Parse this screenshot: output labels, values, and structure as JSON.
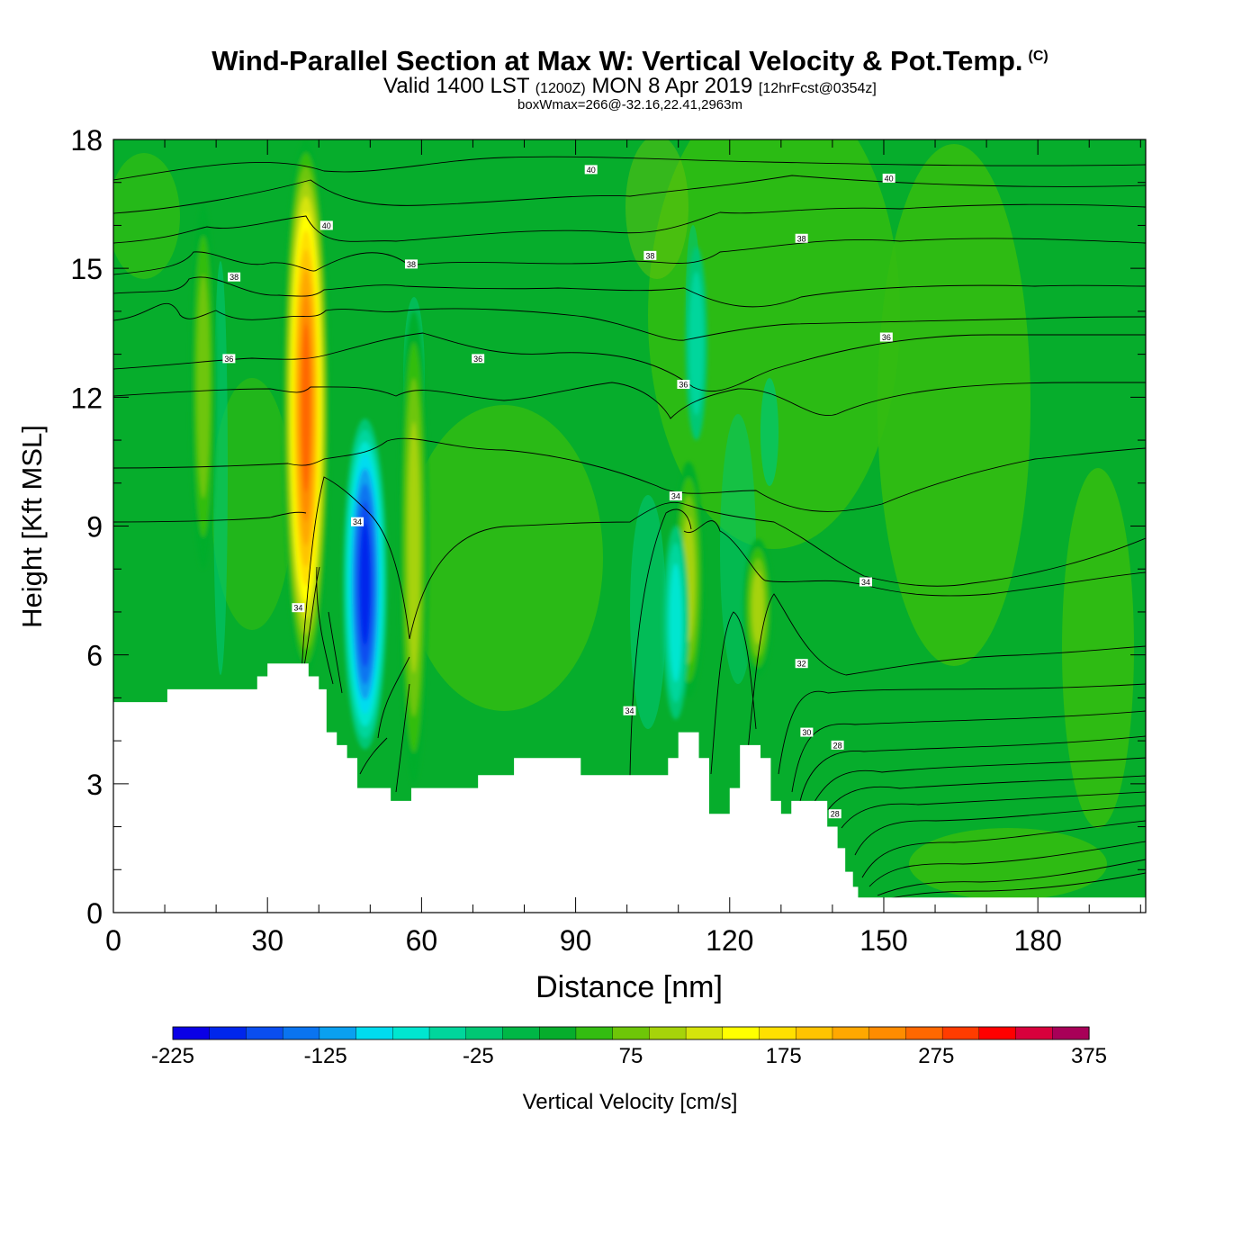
{
  "title": {
    "main": "Wind-Parallel Section at Max W: Vertical Velocity & Pot.Temp.",
    "copyright": "(C)",
    "valid_prefix": "Valid 1400 LST",
    "valid_utc": "(1200Z)",
    "valid_date": "MON 8 Apr 2019",
    "forecast": "[12hrFcst@0354z]",
    "subtitle": "boxWmax=266@-32.16,22.41,2963m"
  },
  "chart_data": {
    "type": "heatmap",
    "xlabel": "Distance [nm]",
    "ylabel": "Height [Kft MSL]",
    "xlim": [
      0,
      201
    ],
    "ylim": [
      0,
      18
    ],
    "x_ticks": [
      0,
      30,
      60,
      90,
      120,
      150,
      180
    ],
    "y_ticks": [
      0,
      3,
      6,
      9,
      12,
      15,
      18
    ],
    "background_velocity": 0,
    "updrafts_downdrafts": [
      {
        "x": 37.5,
        "y_min": 5.5,
        "y_max": 18,
        "peak": 266
      },
      {
        "x": 49,
        "y_min": 3.8,
        "y_max": 11.5,
        "peak": -200
      },
      {
        "x": 58.5,
        "y_min": 3,
        "y_max": 14,
        "peak": 100
      },
      {
        "x": 17.5,
        "y_min": 8,
        "y_max": 16.5,
        "peak": 75
      },
      {
        "x": 112,
        "y_min": 5,
        "y_max": 10.5,
        "peak": 110
      },
      {
        "x": 109.5,
        "y_min": 4.5,
        "y_max": 9,
        "peak": -75
      },
      {
        "x": 125.5,
        "y_min": 5.5,
        "y_max": 8.7,
        "peak": 100
      },
      {
        "x": 113.5,
        "y_min": 11,
        "y_max": 15.5,
        "peak": -50
      }
    ],
    "terrain_top_kft": [
      [
        0,
        4.9
      ],
      [
        10.5,
        4.9
      ],
      [
        10.5,
        5.2
      ],
      [
        28,
        5.2
      ],
      [
        28,
        5.5
      ],
      [
        30,
        5.5
      ],
      [
        30,
        5.8
      ],
      [
        38,
        5.8
      ],
      [
        38,
        5.5
      ],
      [
        40,
        5.5
      ],
      [
        40,
        5.2
      ],
      [
        41.5,
        5.2
      ],
      [
        41.5,
        4.2
      ],
      [
        43.5,
        4.2
      ],
      [
        43.5,
        3.9
      ],
      [
        45.5,
        3.9
      ],
      [
        45.5,
        3.6
      ],
      [
        47.5,
        3.6
      ],
      [
        47.5,
        2.9
      ],
      [
        54,
        2.9
      ],
      [
        54,
        2.6
      ],
      [
        58,
        2.6
      ],
      [
        58,
        2.9
      ],
      [
        71,
        2.9
      ],
      [
        71,
        3.2
      ],
      [
        78,
        3.2
      ],
      [
        78,
        3.6
      ],
      [
        91,
        3.6
      ],
      [
        91,
        3.2
      ],
      [
        108,
        3.2
      ],
      [
        108,
        3.6
      ],
      [
        110,
        3.6
      ],
      [
        110,
        4.2
      ],
      [
        114,
        4.2
      ],
      [
        114,
        3.6
      ],
      [
        116,
        3.6
      ],
      [
        116,
        2.3
      ],
      [
        120,
        2.3
      ],
      [
        120,
        2.9
      ],
      [
        122,
        2.9
      ],
      [
        122,
        3.9
      ],
      [
        126,
        3.9
      ],
      [
        126,
        3.6
      ],
      [
        128,
        3.6
      ],
      [
        128,
        2.6
      ],
      [
        130,
        2.6
      ],
      [
        130,
        2.3
      ],
      [
        132,
        2.3
      ],
      [
        132,
        2.6
      ],
      [
        139,
        2.6
      ],
      [
        139,
        2.0
      ],
      [
        141,
        2.0
      ],
      [
        141,
        1.5
      ],
      [
        142.5,
        1.5
      ],
      [
        142.5,
        0.95
      ],
      [
        144,
        0.95
      ],
      [
        144,
        0.6
      ],
      [
        145,
        0.6
      ],
      [
        145,
        0.35
      ],
      [
        201,
        0.35
      ]
    ],
    "theta_contours": [
      {
        "label": "40",
        "x": 93,
        "y": 17.3
      },
      {
        "label": "40",
        "x": 151,
        "y": 17.1
      },
      {
        "label": "40",
        "x": 41.5,
        "y": 16
      },
      {
        "label": "38",
        "x": 23.5,
        "y": 14.8
      },
      {
        "label": "38",
        "x": 58,
        "y": 15.1
      },
      {
        "label": "38",
        "x": 104.5,
        "y": 15.3
      },
      {
        "label": "38",
        "x": 134,
        "y": 15.7
      },
      {
        "label": "36",
        "x": 22.5,
        "y": 12.9
      },
      {
        "label": "36",
        "x": 71,
        "y": 12.9
      },
      {
        "label": "36",
        "x": 111,
        "y": 12.3
      },
      {
        "label": "36",
        "x": 150.5,
        "y": 13.4
      },
      {
        "label": "34",
        "x": 47.5,
        "y": 9.1
      },
      {
        "label": "34",
        "x": 109.5,
        "y": 9.7
      },
      {
        "label": "34",
        "x": 146.5,
        "y": 7.7
      },
      {
        "label": "34",
        "x": 36,
        "y": 7.1
      },
      {
        "label": "34",
        "x": 100.5,
        "y": 4.7
      },
      {
        "label": "32",
        "x": 134,
        "y": 5.8
      },
      {
        "label": "30",
        "x": 135,
        "y": 4.2
      },
      {
        "label": "28",
        "x": 141,
        "y": 3.9
      },
      {
        "label": "28",
        "x": 140.5,
        "y": 2.3
      }
    ]
  },
  "colorbar": {
    "label": "Vertical Velocity [cm/s]",
    "tick_labels": [
      "-225",
      "-125",
      "-25",
      "75",
      "175",
      "275",
      "375"
    ],
    "levels": [
      -225,
      375
    ],
    "step": 25,
    "colors": [
      "#0a00e6",
      "#0026ec",
      "#0a4ef0",
      "#0a74f0",
      "#0aa0f0",
      "#00dcef",
      "#00e6d0",
      "#00d69c",
      "#00c774",
      "#00b746",
      "#06ad2c",
      "#33bd11",
      "#6ec608",
      "#a6d30a",
      "#d6e40b",
      "#ffff00",
      "#ffe000",
      "#ffc400",
      "#ffa800",
      "#ff8c00",
      "#ff6800",
      "#ff3c00",
      "#ff0000",
      "#d8003c",
      "#a80058"
    ]
  }
}
